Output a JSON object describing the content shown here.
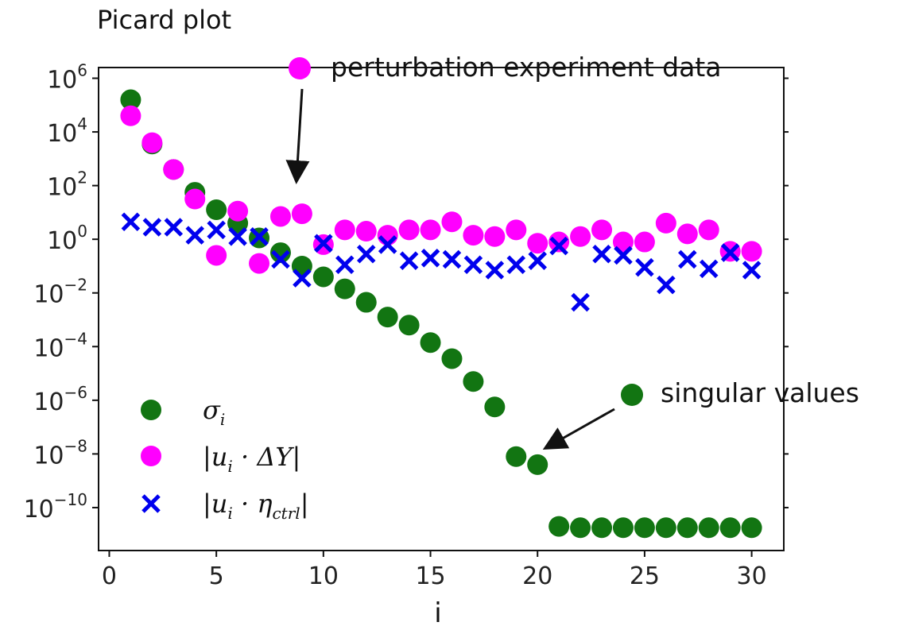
{
  "chart_data": {
    "type": "scatter",
    "title": "Picard plot",
    "xlabel": "i",
    "ylabel": "",
    "xlim": [
      -0.5,
      31.5
    ],
    "ylim_log10": [
      -11.6,
      6.4
    ],
    "yscale": "log",
    "x_ticks": [
      0,
      5,
      10,
      15,
      20,
      25,
      30
    ],
    "y_ticks": [
      {
        "base": "10",
        "exp": "6",
        "log": 6
      },
      {
        "base": "10",
        "exp": "4",
        "log": 4
      },
      {
        "base": "10",
        "exp": "2",
        "log": 2
      },
      {
        "base": "10",
        "exp": "0",
        "log": 0
      },
      {
        "base": "10",
        "exp": "−2",
        "log": -2
      },
      {
        "base": "10",
        "exp": "−4",
        "log": -4
      },
      {
        "base": "10",
        "exp": "−6",
        "log": -6
      },
      {
        "base": "10",
        "exp": "−8",
        "log": -8
      },
      {
        "base": "10",
        "exp": "−10",
        "log": -10
      }
    ],
    "grid": false,
    "legend_position": "lower-left",
    "series": [
      {
        "name": "σ_i",
        "marker": "circle",
        "color": "#127512",
        "x": [
          1,
          2,
          3,
          4,
          5,
          6,
          7,
          8,
          9,
          10,
          11,
          12,
          13,
          14,
          15,
          16,
          17,
          18,
          19,
          20,
          21,
          22,
          23,
          24,
          25,
          26,
          27,
          28,
          29,
          30
        ],
        "log10_y": [
          5.2,
          3.55,
          2.6,
          1.75,
          1.1,
          0.6,
          0.05,
          -0.5,
          -1.0,
          -1.4,
          -1.85,
          -2.35,
          -2.9,
          -3.2,
          -3.85,
          -4.45,
          -5.3,
          -6.25,
          -8.1,
          -8.4,
          -10.7,
          -10.75,
          -10.75,
          -10.75,
          -10.75,
          -10.75,
          -10.75,
          -10.75,
          -10.75,
          -10.75
        ]
      },
      {
        "name": "|u_i · ΔY|",
        "marker": "circle",
        "color": "#ff00ff",
        "x": [
          1,
          2,
          3,
          4,
          5,
          6,
          7,
          8,
          9,
          10,
          11,
          12,
          13,
          14,
          15,
          16,
          17,
          18,
          19,
          20,
          21,
          22,
          23,
          24,
          25,
          26,
          27,
          28,
          29,
          30
        ],
        "log10_y": [
          4.6,
          3.6,
          2.6,
          1.5,
          -0.6,
          1.05,
          -0.9,
          0.85,
          0.95,
          -0.2,
          0.35,
          0.3,
          0.15,
          0.35,
          0.35,
          0.65,
          0.15,
          0.1,
          0.35,
          -0.15,
          -0.1,
          0.1,
          0.35,
          -0.1,
          -0.1,
          0.6,
          0.2,
          0.35,
          -0.45,
          -0.45
        ]
      },
      {
        "name": "|u_i · η_ctrl|",
        "marker": "x",
        "color": "#0000ee",
        "x": [
          1,
          2,
          3,
          4,
          5,
          6,
          7,
          8,
          9,
          10,
          11,
          12,
          13,
          14,
          15,
          16,
          17,
          18,
          19,
          20,
          21,
          22,
          23,
          24,
          25,
          26,
          27,
          28,
          29,
          30
        ],
        "log10_y": [
          0.65,
          0.45,
          0.45,
          0.15,
          0.35,
          0.1,
          0.1,
          -0.75,
          -1.45,
          -0.15,
          -0.95,
          -0.55,
          -0.2,
          -0.8,
          -0.7,
          -0.75,
          -0.95,
          -1.15,
          -0.95,
          -0.8,
          -0.25,
          -2.35,
          -0.55,
          -0.6,
          -1.05,
          -1.7,
          -0.75,
          -1.1,
          -0.5,
          -1.15
        ]
      }
    ],
    "legend": {
      "sigma": {
        "main": "σ",
        "sub": "i"
      },
      "uy": {
        "open": "|u",
        "sub": "i",
        "rest": " · ΔY|"
      },
      "ueta": {
        "open": "|u",
        "sub": "i",
        "mid": " · η",
        "sub2": "ctrl",
        "close": "|"
      }
    },
    "annotations": [
      {
        "text": "perturbation experiment data",
        "marker_color": "#ff00ff",
        "target_x": 9,
        "target_log10_y": 1.7
      },
      {
        "text": "singular values",
        "marker_color": "#127512",
        "target_x": 20.5,
        "target_log10_y": -8.05
      }
    ]
  }
}
